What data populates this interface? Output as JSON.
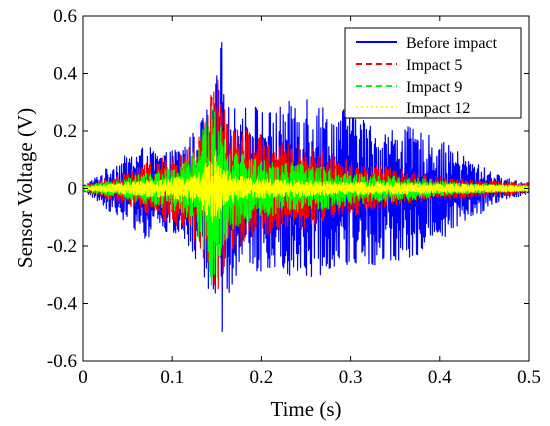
{
  "chart_data": {
    "type": "line",
    "title": "",
    "xlabel": "Time (s)",
    "ylabel": "Sensor Voltage  (V)",
    "xlim": [
      0,
      0.5
    ],
    "ylim": [
      -0.6,
      0.6
    ],
    "x_ticks": [
      "0",
      "0.1",
      "0.2",
      "0.3",
      "0.4",
      "0.5"
    ],
    "y_ticks": [
      "0.6",
      "0.4",
      "0.2",
      "0",
      "-0.2",
      "-0.4",
      "-0.6"
    ],
    "grid": false,
    "legend_position": "top-right",
    "series": [
      {
        "name": "Before impact",
        "color": "#0000ff",
        "line_style": "solid",
        "envelope": {
          "t": [
            0.0,
            0.01,
            0.03,
            0.05,
            0.07,
            0.09,
            0.11,
            0.13,
            0.145,
            0.15,
            0.155,
            0.16,
            0.17,
            0.19,
            0.21,
            0.23,
            0.25,
            0.26,
            0.28,
            0.3,
            0.33,
            0.36,
            0.4,
            0.44,
            0.47,
            0.5
          ],
          "max": [
            0.01,
            0.03,
            0.08,
            0.12,
            0.15,
            0.12,
            0.15,
            0.22,
            0.33,
            0.4,
            0.54,
            0.3,
            0.28,
            0.3,
            0.27,
            0.3,
            0.35,
            0.32,
            0.26,
            0.3,
            0.2,
            0.22,
            0.17,
            0.09,
            0.04,
            0.02
          ],
          "min": [
            -0.01,
            -0.03,
            -0.08,
            -0.12,
            -0.18,
            -0.15,
            -0.18,
            -0.28,
            -0.4,
            -0.5,
            -0.53,
            -0.4,
            -0.31,
            -0.3,
            -0.28,
            -0.3,
            -0.32,
            -0.32,
            -0.27,
            -0.28,
            -0.27,
            -0.26,
            -0.18,
            -0.1,
            -0.04,
            -0.02
          ]
        }
      },
      {
        "name": "Impact 5",
        "color": "#ff0000",
        "line_style": "dashed",
        "envelope": {
          "t": [
            0.0,
            0.02,
            0.05,
            0.08,
            0.11,
            0.13,
            0.145,
            0.15,
            0.155,
            0.16,
            0.17,
            0.19,
            0.22,
            0.25,
            0.28,
            0.31,
            0.35,
            0.4,
            0.45,
            0.5
          ],
          "max": [
            0.01,
            0.03,
            0.06,
            0.1,
            0.12,
            0.18,
            0.35,
            0.4,
            0.32,
            0.28,
            0.22,
            0.2,
            0.16,
            0.15,
            0.12,
            0.09,
            0.07,
            0.04,
            0.03,
            0.02
          ],
          "min": [
            -0.01,
            -0.03,
            -0.06,
            -0.1,
            -0.14,
            -0.2,
            -0.35,
            -0.38,
            -0.32,
            -0.28,
            -0.22,
            -0.18,
            -0.15,
            -0.14,
            -0.1,
            -0.09,
            -0.06,
            -0.04,
            -0.03,
            -0.02
          ]
        }
      },
      {
        "name": "Impact 9",
        "color": "#00ff00",
        "line_style": "dashed",
        "envelope": {
          "t": [
            0.0,
            0.02,
            0.05,
            0.08,
            0.11,
            0.13,
            0.145,
            0.15,
            0.155,
            0.16,
            0.17,
            0.2,
            0.24,
            0.28,
            0.32,
            0.37,
            0.42,
            0.5
          ],
          "max": [
            0.01,
            0.02,
            0.04,
            0.06,
            0.08,
            0.15,
            0.36,
            0.3,
            0.25,
            0.18,
            0.14,
            0.1,
            0.09,
            0.07,
            0.05,
            0.04,
            0.02,
            0.01
          ],
          "min": [
            -0.01,
            -0.02,
            -0.04,
            -0.06,
            -0.09,
            -0.18,
            -0.38,
            -0.33,
            -0.25,
            -0.18,
            -0.14,
            -0.1,
            -0.08,
            -0.07,
            -0.05,
            -0.04,
            -0.02,
            -0.01
          ]
        }
      },
      {
        "name": "Impact 12",
        "color": "#ffff00",
        "line_style": "dotted",
        "envelope": {
          "t": [
            0.0,
            0.03,
            0.06,
            0.1,
            0.13,
            0.145,
            0.15,
            0.155,
            0.165,
            0.19,
            0.23,
            0.28,
            0.35,
            0.43,
            0.5
          ],
          "max": [
            0.005,
            0.015,
            0.025,
            0.035,
            0.06,
            0.12,
            0.14,
            0.08,
            0.05,
            0.035,
            0.03,
            0.025,
            0.02,
            0.015,
            0.01
          ],
          "min": [
            -0.005,
            -0.015,
            -0.025,
            -0.035,
            -0.06,
            -0.12,
            -0.14,
            -0.08,
            -0.05,
            -0.035,
            -0.03,
            -0.025,
            -0.02,
            -0.015,
            -0.01
          ]
        }
      }
    ]
  }
}
